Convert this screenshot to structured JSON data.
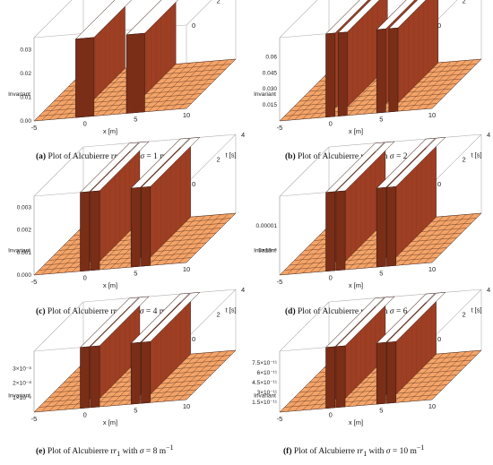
{
  "chart_data": [
    {
      "type": "surface3d",
      "panel": "a",
      "caption_letter": "(a)",
      "caption_text": "Plot of Alcubierre r",
      "caption_sub": "1",
      "caption_sigma": "1",
      "xlabel": "x [m]",
      "ylabel": "t [s]",
      "zlabel": "Invariant",
      "x_ticks": [
        "-5",
        "0",
        "5",
        "10"
      ],
      "t_ticks": [
        "0",
        "2",
        "4"
      ],
      "z_ticks": [
        "0.00",
        "0.01",
        "0.02",
        "0.03"
      ],
      "xlim": [
        -5,
        10
      ],
      "tlim": [
        0,
        4
      ],
      "zlim": [
        0,
        0.035
      ],
      "walls": [
        {
          "x": 0,
          "h": 0.033
        },
        {
          "x": 5,
          "h": 0.033
        }
      ],
      "smooth": true
    },
    {
      "type": "surface3d",
      "panel": "b",
      "caption_letter": "(b)",
      "caption_text": "Plot of Alcubierre r",
      "caption_sub": "1",
      "caption_sigma": "2",
      "xlabel": "x [m]",
      "ylabel": "t [s]",
      "zlabel": "Invariant",
      "x_ticks": [
        "-5",
        "0",
        "5",
        "10"
      ],
      "t_ticks": [
        "0",
        "2",
        "4"
      ],
      "z_ticks": [
        "0.015",
        "0.030",
        "0.045",
        "0.06"
      ],
      "xlim": [
        -5,
        10
      ],
      "tlim": [
        0,
        4
      ],
      "zlim": [
        0,
        0.07
      ],
      "walls": [
        {
          "x": 0,
          "h": 0.07
        },
        {
          "x": 1.2,
          "h": 0.07
        },
        {
          "x": 5,
          "h": 0.07
        },
        {
          "x": 6.2,
          "h": 0.07
        }
      ],
      "smooth": false
    },
    {
      "type": "surface3d",
      "panel": "c",
      "caption_letter": "(c)",
      "caption_text": "Plot of Alcubierre r",
      "caption_sub": "1",
      "caption_sigma": "4",
      "xlabel": "x [m]",
      "ylabel": "t [s]",
      "zlabel": "Invariant",
      "x_ticks": [
        "-5",
        "0",
        "5",
        "10"
      ],
      "t_ticks": [
        "0",
        "2",
        "4"
      ],
      "z_ticks": [
        "0.000",
        "0.001",
        "0.002",
        "0.003"
      ],
      "xlim": [
        -5,
        10
      ],
      "tlim": [
        0,
        4
      ],
      "zlim": [
        0,
        0.0035
      ],
      "walls": [
        {
          "x": 0,
          "h": 0.0035
        },
        {
          "x": 1,
          "h": 0.0035
        },
        {
          "x": 5,
          "h": 0.0035
        },
        {
          "x": 6,
          "h": 0.0035
        }
      ],
      "smooth": false
    },
    {
      "type": "surface3d",
      "panel": "d",
      "caption_letter": "(d)",
      "caption_text": "Plot of Alcubierre r",
      "caption_sub": "1",
      "caption_sigma": "6",
      "xlabel": "x [m]",
      "ylabel": "t [s]",
      "zlabel": "Invariant",
      "x_ticks": [
        "-5",
        "0",
        "5",
        "10"
      ],
      "t_ticks": [
        "0",
        "2",
        "4"
      ],
      "z_ticks": [
        "5×10⁻⁶",
        "0.00001"
      ],
      "xlim": [
        -5,
        10
      ],
      "tlim": [
        0,
        4
      ],
      "zlim": [
        0,
        1.8e-05
      ],
      "walls": [
        {
          "x": 0,
          "h": 1.8e-05
        },
        {
          "x": 1,
          "h": 1.8e-05
        },
        {
          "x": 5,
          "h": 1.8e-05
        },
        {
          "x": 6,
          "h": 1.8e-05
        }
      ],
      "smooth": false
    },
    {
      "type": "surface3d",
      "panel": "e",
      "caption_letter": "(e)",
      "caption_text": "Plot of Alcubierre r",
      "caption_sub": "1",
      "caption_sigma": "8",
      "xlabel": "x [m]",
      "ylabel": "t [s]",
      "zlabel": "Invariant",
      "x_ticks": [
        "-5",
        "0",
        "5",
        "10"
      ],
      "t_ticks": [
        "0",
        "2",
        "4"
      ],
      "z_ticks": [
        "1×10⁻⁸",
        "2×10⁻⁸",
        "3×10⁻⁸"
      ],
      "xlim": [
        -5,
        10
      ],
      "tlim": [
        0,
        4
      ],
      "zlim": [
        0,
        4.2e-08
      ],
      "walls": [
        {
          "x": 0,
          "h": 4.2e-08
        },
        {
          "x": 1,
          "h": 4.2e-08
        },
        {
          "x": 5,
          "h": 4.2e-08
        },
        {
          "x": 6,
          "h": 4.2e-08
        }
      ],
      "smooth": false
    },
    {
      "type": "surface3d",
      "panel": "f",
      "caption_letter": "(f)",
      "caption_text": "Plot of Alcubierre r",
      "caption_sub": "1",
      "caption_sigma": "10",
      "xlabel": "x [m]",
      "ylabel": "t [s]",
      "zlabel": "Invariant",
      "x_ticks": [
        "-5",
        "0",
        "5",
        "10"
      ],
      "t_ticks": [
        "0",
        "2",
        "4"
      ],
      "z_ticks": [
        "1.5×10⁻¹¹",
        "3×10⁻¹¹",
        "4.5×10⁻¹¹",
        "6×10⁻¹¹",
        "7.5×10⁻¹¹"
      ],
      "xlim": [
        -5,
        10
      ],
      "tlim": [
        0,
        4
      ],
      "zlim": [
        0,
        9e-11
      ],
      "walls": [
        {
          "x": 0,
          "h": 9e-11
        },
        {
          "x": 1,
          "h": 9e-11
        },
        {
          "x": 5,
          "h": 9e-11
        },
        {
          "x": 6,
          "h": 9e-11
        }
      ],
      "smooth": false
    }
  ],
  "colors": {
    "surface": "#f4a468",
    "surface_dark": "#8b3a22",
    "wall": "#9e3f24",
    "mesh": "#3a1a10",
    "box": "#b0b0b0"
  }
}
